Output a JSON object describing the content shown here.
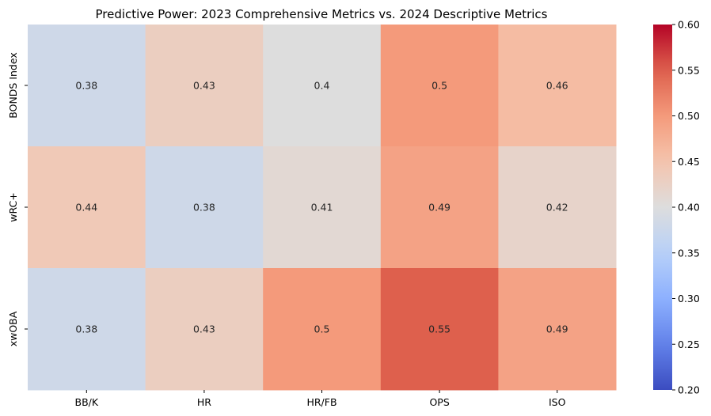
{
  "chart_data": {
    "type": "heatmap",
    "title": "Predictive Power: 2023 Comprehensive Metrics vs. 2024 Descriptive Metrics",
    "xlabel": "",
    "ylabel": "",
    "x_categories": [
      "BB/K",
      "HR",
      "HR/FB",
      "OPS",
      "ISO"
    ],
    "y_categories": [
      "BONDS Index",
      "wRC+",
      "xwOBA"
    ],
    "values": [
      [
        0.38,
        0.43,
        0.4,
        0.5,
        0.46
      ],
      [
        0.44,
        0.38,
        0.41,
        0.49,
        0.42
      ],
      [
        0.38,
        0.43,
        0.5,
        0.55,
        0.49
      ]
    ],
    "value_labels": [
      [
        "0.38",
        "0.43",
        "0.4",
        "0.5",
        "0.46"
      ],
      [
        "0.44",
        "0.38",
        "0.41",
        "0.49",
        "0.42"
      ],
      [
        "0.38",
        "0.43",
        "0.5",
        "0.55",
        "0.49"
      ]
    ],
    "colormap": "coolwarm",
    "vmin": 0.2,
    "vmax": 0.6,
    "colorbar_ticks": [
      "0.20",
      "0.25",
      "0.30",
      "0.35",
      "0.40",
      "0.45",
      "0.50",
      "0.55",
      "0.60"
    ],
    "colorbar_position": "right",
    "grid": false
  }
}
